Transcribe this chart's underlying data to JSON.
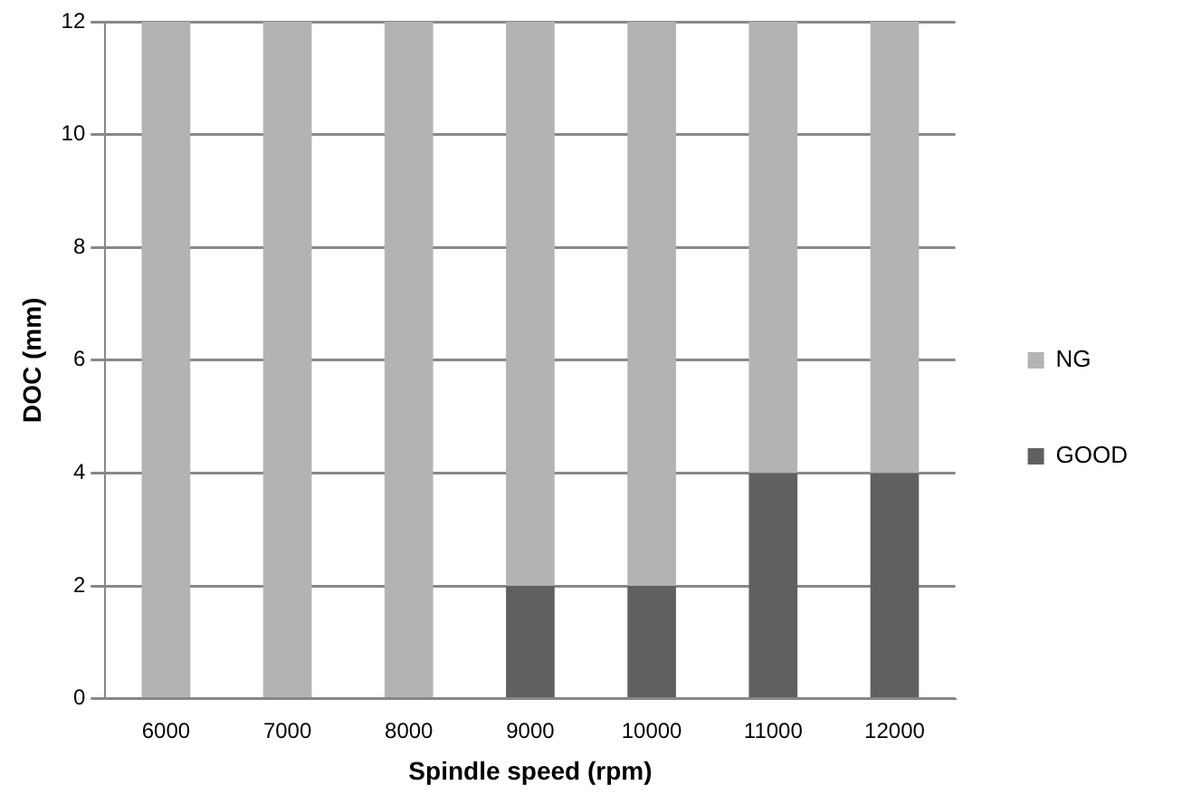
{
  "chart_data": {
    "type": "bar",
    "xlabel": "Spindle speed (rpm)",
    "ylabel": "DOC (mm)",
    "categories": [
      "6000",
      "7000",
      "8000",
      "9000",
      "10000",
      "11000",
      "12000"
    ],
    "series": [
      {
        "name": "GOOD",
        "color": "#606060",
        "values": [
          0,
          0,
          0,
          2,
          2,
          4,
          4
        ]
      },
      {
        "name": "NG",
        "color": "#b3b3b3",
        "values": [
          12,
          12,
          12,
          10,
          10,
          8,
          8
        ]
      }
    ],
    "stacked": true,
    "ylim": [
      0,
      12
    ],
    "yticks": [
      0,
      2,
      4,
      6,
      8,
      10,
      12
    ],
    "grid": "y",
    "legend": "right"
  }
}
